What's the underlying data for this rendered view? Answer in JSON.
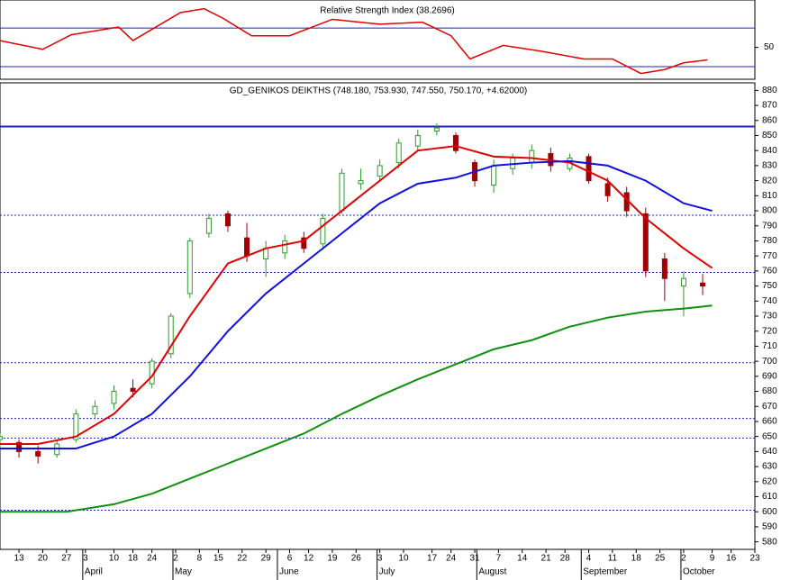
{
  "chart_data": [
    {
      "type": "rsi",
      "title": "Relative Strength Index (38.2696)",
      "x": [
        0,
        9,
        15,
        25,
        28,
        38,
        43,
        47,
        53,
        61,
        70,
        80,
        89,
        95,
        99,
        106,
        114,
        123,
        129,
        135,
        140,
        144,
        149
      ],
      "series": [
        {
          "name": "RSI",
          "color": "#e00000",
          "values": [
            57,
            48,
            63,
            71,
            57,
            86,
            90,
            80,
            62,
            62,
            79,
            74,
            76,
            62,
            38,
            52,
            46,
            38,
            38,
            23,
            27,
            34,
            37
          ]
        }
      ],
      "levels": [
        30,
        70
      ],
      "level_color": "#2020c0",
      "xlim": [
        0,
        159
      ],
      "ylim": [
        17,
        99
      ],
      "yticks": [
        50
      ]
    },
    {
      "type": "candlestick",
      "title": "GD_GENIKOS DEIKTHS (748.180, 753.930, 747.550, 750.170, +4.62000)",
      "x": [
        0,
        4,
        8,
        12,
        16,
        20,
        24,
        28,
        32,
        36,
        40,
        44,
        48,
        52,
        56,
        60,
        64,
        68,
        72,
        76,
        80,
        84,
        88,
        92,
        96,
        100,
        104,
        108,
        112,
        116,
        120,
        124,
        128,
        132,
        136,
        140,
        144,
        148
      ],
      "open": [
        648,
        646,
        640,
        638,
        648,
        665,
        672,
        682,
        685,
        705,
        745,
        785,
        798,
        782,
        768,
        772,
        782,
        778,
        800,
        818,
        823,
        832,
        843,
        853,
        850,
        832,
        817,
        828,
        832,
        838,
        828,
        836,
        818,
        812,
        798,
        768,
        750,
        752
      ],
      "high": [
        652,
        648,
        644,
        648,
        668,
        674,
        684,
        688,
        702,
        732,
        782,
        798,
        800,
        792,
        780,
        784,
        786,
        798,
        828,
        828,
        834,
        848,
        854,
        858,
        852,
        834,
        834,
        838,
        844,
        842,
        838,
        838,
        822,
        816,
        802,
        772,
        760,
        758
      ],
      "low": [
        642,
        636,
        632,
        636,
        646,
        662,
        668,
        676,
        682,
        702,
        742,
        782,
        786,
        766,
        756,
        768,
        772,
        774,
        798,
        814,
        820,
        828,
        840,
        850,
        838,
        816,
        812,
        824,
        828,
        826,
        826,
        818,
        806,
        796,
        756,
        740,
        730,
        744
      ],
      "close": [
        650,
        640,
        637,
        645,
        665,
        670,
        680,
        680,
        700,
        730,
        780,
        795,
        790,
        770,
        775,
        780,
        775,
        795,
        825,
        820,
        830,
        845,
        850,
        855,
        840,
        820,
        830,
        835,
        840,
        830,
        835,
        820,
        810,
        800,
        760,
        755,
        755,
        750
      ],
      "up_color": "#2e9c2e",
      "down_color": "#a00000",
      "lines": [
        {
          "name": "MA20",
          "color": "#e00000",
          "x": [
            0,
            8,
            16,
            24,
            32,
            40,
            48,
            56,
            64,
            72,
            80,
            88,
            96,
            104,
            112,
            120,
            128,
            136,
            144,
            150
          ],
          "values": [
            645,
            645,
            650,
            665,
            690,
            730,
            765,
            775,
            780,
            800,
            820,
            840,
            843,
            836,
            835,
            832,
            820,
            795,
            775,
            762
          ]
        },
        {
          "name": "MA50",
          "color": "#1010e0",
          "x": [
            0,
            8,
            16,
            24,
            32,
            40,
            48,
            56,
            64,
            72,
            80,
            88,
            96,
            104,
            112,
            120,
            128,
            136,
            144,
            150
          ],
          "values": [
            642,
            642,
            642,
            650,
            665,
            690,
            720,
            745,
            765,
            785,
            805,
            818,
            822,
            830,
            832,
            833,
            830,
            820,
            805,
            800
          ]
        },
        {
          "name": "MA200",
          "color": "#109010",
          "x": [
            0,
            8,
            14,
            24,
            32,
            40,
            48,
            56,
            64,
            72,
            80,
            88,
            96,
            104,
            112,
            120,
            128,
            136,
            144,
            150
          ],
          "values": [
            600,
            600,
            600,
            605,
            612,
            622,
            632,
            642,
            652,
            665,
            677,
            688,
            698,
            708,
            714,
            723,
            729,
            733,
            735,
            737
          ]
        }
      ],
      "hlines": [
        856,
        797,
        759,
        699,
        662,
        649,
        601
      ],
      "hline_color": "#2020c0",
      "xlim": [
        0,
        159
      ],
      "ylim": [
        575,
        885
      ],
      "yticks": [
        580,
        590,
        600,
        610,
        620,
        630,
        640,
        650,
        660,
        670,
        680,
        690,
        700,
        710,
        720,
        730,
        740,
        750,
        760,
        770,
        780,
        790,
        800,
        810,
        820,
        830,
        840,
        850,
        860,
        870,
        880
      ],
      "xticks": [
        {
          "value": 4,
          "label": "13"
        },
        {
          "value": 9,
          "label": "20"
        },
        {
          "value": 14,
          "label": "27"
        },
        {
          "value": 18,
          "label": "3"
        },
        {
          "value": 24,
          "label": "10"
        },
        {
          "value": 28,
          "label": "18"
        },
        {
          "value": 32,
          "label": "24"
        },
        {
          "value": 37,
          "label": "2"
        },
        {
          "value": 42,
          "label": "8"
        },
        {
          "value": 46,
          "label": "15"
        },
        {
          "value": 51,
          "label": "22"
        },
        {
          "value": 56,
          "label": "29"
        },
        {
          "value": 61,
          "label": "6"
        },
        {
          "value": 65,
          "label": "12"
        },
        {
          "value": 70,
          "label": "19"
        },
        {
          "value": 75,
          "label": "26"
        },
        {
          "value": 80,
          "label": "3"
        },
        {
          "value": 85,
          "label": "10"
        },
        {
          "value": 91,
          "label": "17"
        },
        {
          "value": 95,
          "label": "24"
        },
        {
          "value": 100,
          "label": "31"
        },
        {
          "value": 105,
          "label": "7"
        },
        {
          "value": 110,
          "label": "14"
        },
        {
          "value": 115,
          "label": "21"
        },
        {
          "value": 119,
          "label": "28"
        },
        {
          "value": 124,
          "label": "4"
        },
        {
          "value": 129,
          "label": "11"
        },
        {
          "value": 134,
          "label": "18"
        },
        {
          "value": 139,
          "label": "25"
        },
        {
          "value": 144,
          "label": "2"
        },
        {
          "value": 150,
          "label": "9"
        },
        {
          "value": 154,
          "label": "16"
        },
        {
          "value": 159,
          "label": "23"
        }
      ],
      "months": [
        {
          "value": 18,
          "label": "April"
        },
        {
          "value": 37,
          "label": "May"
        },
        {
          "value": 59,
          "label": "June"
        },
        {
          "value": 80,
          "label": "July"
        },
        {
          "value": 101,
          "label": "August"
        },
        {
          "value": 123,
          "label": "September"
        },
        {
          "value": 144,
          "label": "October"
        }
      ]
    }
  ]
}
